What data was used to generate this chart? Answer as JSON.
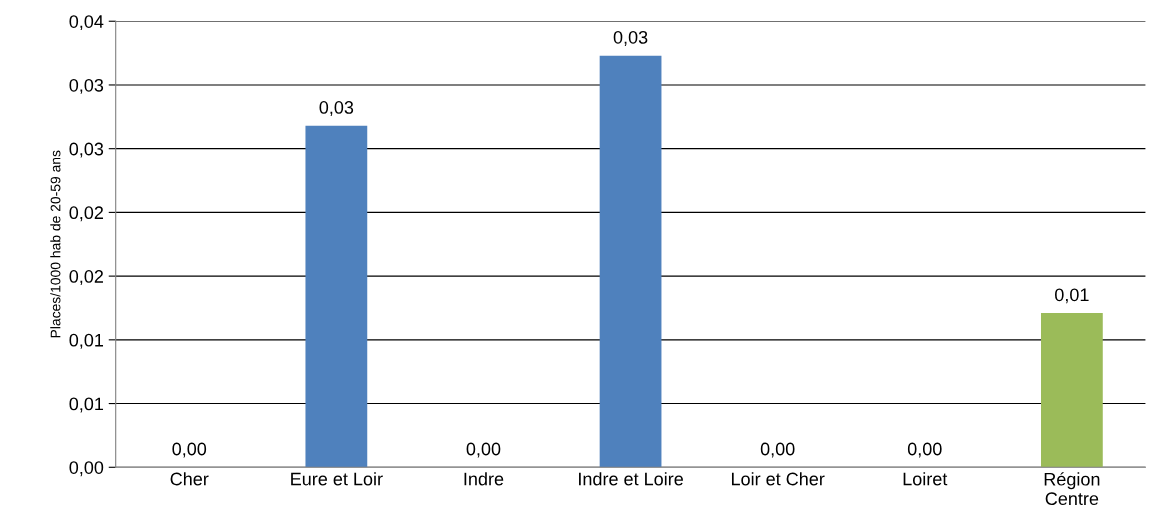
{
  "chart_data": {
    "type": "bar",
    "ylabel": "Places/1000 hab de 20-59 ans",
    "categories": [
      "Cher",
      "Eure et Loir",
      "Indre",
      "Indre et Loire",
      "Loir et Cher",
      "Loiret",
      "Région\nCentre"
    ],
    "values": [
      0,
      0.0268,
      0,
      0.0323,
      0,
      0,
      0.0121
    ],
    "colors": [
      "#4f81bd",
      "#4f81bd",
      "#4f81bd",
      "#4f81bd",
      "#4f81bd",
      "#4f81bd",
      "#9bbb59"
    ],
    "value_labels": [
      "0,00",
      "0,03",
      "0,00",
      "0,03",
      "0,00",
      "0,00",
      "0,01"
    ],
    "ylim": [
      0,
      0.035
    ],
    "yticks": [
      {
        "value": 0,
        "label": "0,00"
      },
      {
        "value": 0.005,
        "label": "0,01"
      },
      {
        "value": 0.01,
        "label": "0,01"
      },
      {
        "value": 0.015,
        "label": "0,02"
      },
      {
        "value": 0.02,
        "label": "0,02"
      },
      {
        "value": 0.025,
        "label": "0,03"
      },
      {
        "value": 0.03,
        "label": "0,03"
      },
      {
        "value": 0.035,
        "label": "0,04"
      }
    ],
    "grid": "y",
    "legend": false
  }
}
